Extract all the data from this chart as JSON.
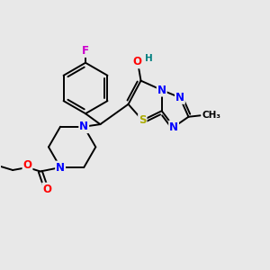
{
  "background_color": "#e8e8e8",
  "bond_color": "#000000",
  "atom_colors": {
    "F": "#cc00cc",
    "O": "#ff0000",
    "N": "#0000ff",
    "S": "#aaaa00",
    "H": "#008080",
    "C": "#000000"
  },
  "figsize": [
    3.0,
    3.0
  ],
  "dpi": 100,
  "lw": 1.4
}
